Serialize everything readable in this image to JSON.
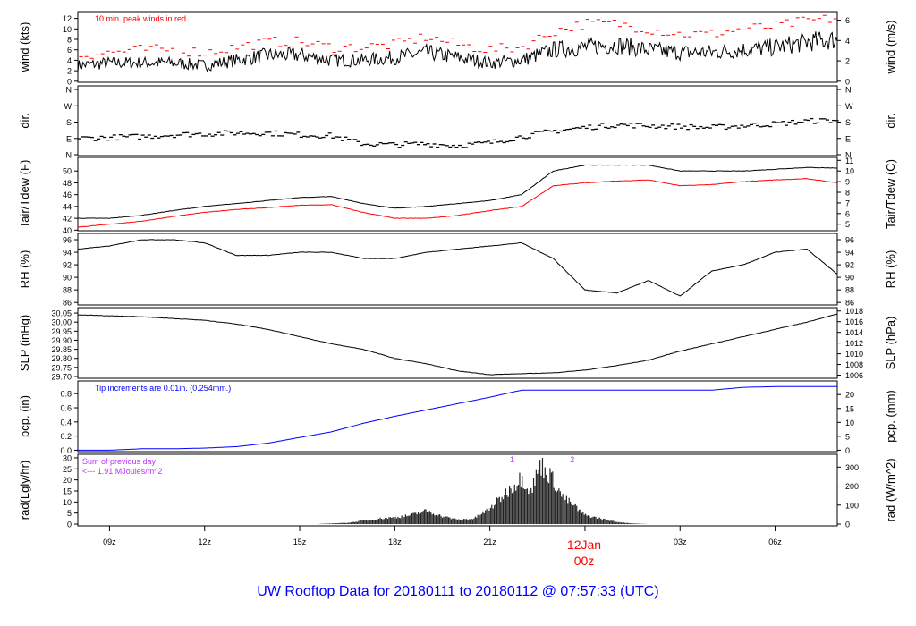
{
  "title": "UW Rooftop Data for 20180111  to  20180112 @ 07:57:33  (UTC)",
  "date_marker": {
    "day": "12Jan",
    "hour": "00z",
    "color": "#ff0000"
  },
  "x_axis": {
    "ticks": [
      {
        "h": 9,
        "label": "09z"
      },
      {
        "h": 12,
        "label": "12z"
      },
      {
        "h": 15,
        "label": "15z"
      },
      {
        "h": 18,
        "label": "18z"
      },
      {
        "h": 21,
        "label": "21z"
      },
      {
        "h": 24,
        "label": ""
      },
      {
        "h": 27,
        "label": "03z"
      },
      {
        "h": 30,
        "label": "06z"
      }
    ],
    "range_hours": [
      8,
      31.96
    ]
  },
  "chart_data": [
    {
      "type": "line",
      "id": "wind",
      "ylabel": "wind (kts)",
      "ylabel_right": "wind (m/s)",
      "ylim": [
        -0.2,
        13.3
      ],
      "yticks": [
        0,
        2,
        4,
        6,
        8,
        10,
        12
      ],
      "yticks_right": [
        0,
        2,
        4,
        6
      ],
      "annotation": "10 min. peak winds in red",
      "annotation_color": "#ff0000",
      "x": [
        8,
        9,
        10,
        11,
        12,
        13,
        14,
        15,
        16,
        17,
        18,
        19,
        20,
        21,
        22,
        23,
        24,
        25,
        26,
        27,
        28,
        29,
        30,
        31,
        31.96
      ],
      "series": [
        {
          "name": "wind",
          "color": "#000000",
          "values": [
            3,
            3.5,
            3.5,
            3.5,
            3,
            4,
            5,
            5,
            4,
            4,
            4.5,
            5.5,
            4.5,
            3.5,
            4,
            6,
            6.5,
            7,
            6,
            5.5,
            5.5,
            6,
            6.5,
            7.5,
            8
          ]
        },
        {
          "name": "peak",
          "color": "#ff0000",
          "values": [
            5,
            5.5,
            6,
            6,
            5.5,
            6.5,
            7.5,
            7.5,
            6.5,
            6.5,
            7,
            8.5,
            7,
            6,
            6.5,
            9.5,
            11,
            11,
            10,
            9,
            9,
            10,
            10.5,
            11.5,
            12
          ]
        }
      ]
    },
    {
      "type": "scatter",
      "id": "dir",
      "ylabel": "dir.",
      "ylabel_right": "dir.",
      "ylim": [
        -5,
        380
      ],
      "yticks": [
        0,
        90,
        180,
        270,
        360
      ],
      "yticklabels": [
        "N",
        "E",
        "S",
        "W",
        "N"
      ],
      "x": [
        8,
        9,
        10,
        11,
        12,
        13,
        14,
        15,
        16,
        17,
        18,
        19,
        20,
        21,
        22,
        23,
        24,
        25,
        26,
        27,
        28,
        29,
        30,
        31,
        31.96
      ],
      "series": [
        {
          "name": "dir",
          "color": "#000000",
          "values": [
            90,
            95,
            100,
            110,
            115,
            120,
            120,
            110,
            105,
            60,
            55,
            60,
            50,
            65,
            100,
            130,
            150,
            165,
            160,
            155,
            150,
            160,
            170,
            185,
            190
          ]
        }
      ]
    },
    {
      "type": "line",
      "id": "temp",
      "ylabel": "Tair/Tdew (F)",
      "ylabel_right": "Tair/Tdew (C)",
      "ylim": [
        39.9,
        52.3
      ],
      "yticks": [
        40,
        42,
        44,
        46,
        48,
        50
      ],
      "yticks_right": [
        5,
        6,
        7,
        8,
        9,
        10,
        11
      ],
      "x": [
        8,
        9,
        10,
        11,
        12,
        13,
        14,
        15,
        16,
        17,
        18,
        19,
        20,
        21,
        22,
        23,
        24,
        25,
        26,
        27,
        28,
        29,
        30,
        31,
        31.96
      ],
      "series": [
        {
          "name": "Tair",
          "color": "#000000",
          "values": [
            42,
            42,
            42.5,
            43.3,
            44,
            44.5,
            45,
            45.5,
            45.7,
            44.5,
            43.7,
            44,
            44.5,
            45,
            46,
            50,
            51,
            51,
            51,
            50,
            50,
            50,
            50.3,
            50.6,
            50.5
          ]
        },
        {
          "name": "Tdew",
          "color": "#ff0000",
          "values": [
            40.5,
            41,
            41.5,
            42.3,
            43,
            43.5,
            43.8,
            44.2,
            44.3,
            43,
            42,
            42,
            42.5,
            43.3,
            44,
            47.5,
            48,
            48.3,
            48.5,
            47.5,
            47.7,
            48.2,
            48.5,
            48.7,
            48
          ]
        }
      ]
    },
    {
      "type": "line",
      "id": "rh",
      "ylabel": "RH (%)",
      "ylabel_right": "RH (%)",
      "ylim": [
        85.6,
        97
      ],
      "yticks": [
        86,
        88,
        90,
        92,
        94,
        96
      ],
      "yticks_right": [
        86,
        88,
        90,
        92,
        94,
        96
      ],
      "x": [
        8,
        9,
        10,
        11,
        12,
        13,
        14,
        15,
        16,
        17,
        18,
        19,
        20,
        21,
        22,
        23,
        24,
        25,
        26,
        27,
        28,
        29,
        30,
        31,
        31.96
      ],
      "series": [
        {
          "name": "RH",
          "color": "#000000",
          "values": [
            94.5,
            95,
            96,
            96,
            95.5,
            93.5,
            93.5,
            94,
            94,
            93,
            93,
            94,
            94.5,
            95,
            95.5,
            93,
            88,
            87.5,
            89.5,
            87,
            91,
            92,
            94,
            94.5,
            90.5
          ]
        }
      ]
    },
    {
      "type": "line",
      "id": "slp",
      "ylabel": "SLP (inHg)",
      "ylabel_right": "SLP (hPa)",
      "ylim": [
        29.69,
        30.08
      ],
      "yticks": [
        29.7,
        29.75,
        29.8,
        29.85,
        29.9,
        29.95,
        30.0,
        30.05
      ],
      "yticks_right": [
        1006,
        1008,
        1010,
        1012,
        1014,
        1016,
        1018
      ],
      "x": [
        8,
        9,
        10,
        11,
        12,
        13,
        14,
        15,
        16,
        17,
        18,
        19,
        20,
        21,
        22,
        23,
        24,
        25,
        26,
        27,
        28,
        29,
        30,
        31,
        31.96
      ],
      "series": [
        {
          "name": "SLP",
          "color": "#000000",
          "values": [
            30.04,
            30.035,
            30.03,
            30.02,
            30.01,
            29.99,
            29.96,
            29.92,
            29.88,
            29.85,
            29.8,
            29.77,
            29.73,
            29.71,
            29.715,
            29.72,
            29.735,
            29.76,
            29.79,
            29.84,
            29.88,
            29.92,
            29.96,
            30.0,
            30.045
          ]
        }
      ]
    },
    {
      "type": "line",
      "id": "pcp",
      "ylabel": "pcp. (in)",
      "ylabel_right": "pcp. (mm)",
      "ylim": [
        -0.02,
        0.98
      ],
      "yticks": [
        0.0,
        0.2,
        0.4,
        0.6,
        0.8
      ],
      "yticks_right": [
        0,
        5,
        10,
        15,
        20
      ],
      "annotation": "Tip increments are 0.01in. (0.254mm.)",
      "annotation_color": "#0000ff",
      "x": [
        8,
        9,
        10,
        11,
        12,
        13,
        14,
        15,
        16,
        17,
        18,
        19,
        20,
        21,
        22,
        23,
        24,
        25,
        26,
        27,
        28,
        29,
        30,
        31,
        31.96
      ],
      "series": [
        {
          "name": "pcp",
          "color": "#0000ff",
          "values": [
            0,
            0,
            0.02,
            0.02,
            0.03,
            0.05,
            0.1,
            0.18,
            0.26,
            0.38,
            0.48,
            0.57,
            0.66,
            0.75,
            0.85,
            0.85,
            0.85,
            0.85,
            0.85,
            0.85,
            0.85,
            0.89,
            0.9,
            0.9,
            0.9
          ]
        }
      ]
    },
    {
      "type": "area",
      "id": "rad",
      "ylabel": "rad(Lgly/hr)",
      "ylabel_right": "rad (W/m^2)",
      "ylim": [
        -0.8,
        31.6
      ],
      "yticks": [
        0,
        5,
        10,
        15,
        20,
        25,
        30
      ],
      "yticks_right": [
        0,
        100,
        200,
        300
      ],
      "annotation_lines": [
        "Sum of previous day",
        "<--- 1.91 MJoules/m^2"
      ],
      "annotation_color": "#bb33ff",
      "markers": [
        {
          "h": 21.7,
          "label": "1"
        },
        {
          "h": 23.6,
          "label": "2"
        }
      ],
      "x": [
        15.5,
        16,
        16.5,
        17,
        17.5,
        18,
        18.5,
        19,
        19.5,
        20,
        20.5,
        21,
        21.5,
        22,
        22.3,
        22.6,
        23,
        23.3,
        23.6,
        24,
        24.5,
        25,
        25.5,
        26
      ],
      "series": [
        {
          "name": "rad",
          "color": "#222222",
          "values": [
            0,
            0.3,
            0.6,
            1.5,
            2.5,
            3,
            4,
            6,
            3.5,
            2,
            2.5,
            7,
            14,
            21,
            15,
            27,
            20,
            12,
            9,
            4,
            2.5,
            1,
            0.3,
            0
          ]
        }
      ]
    }
  ]
}
